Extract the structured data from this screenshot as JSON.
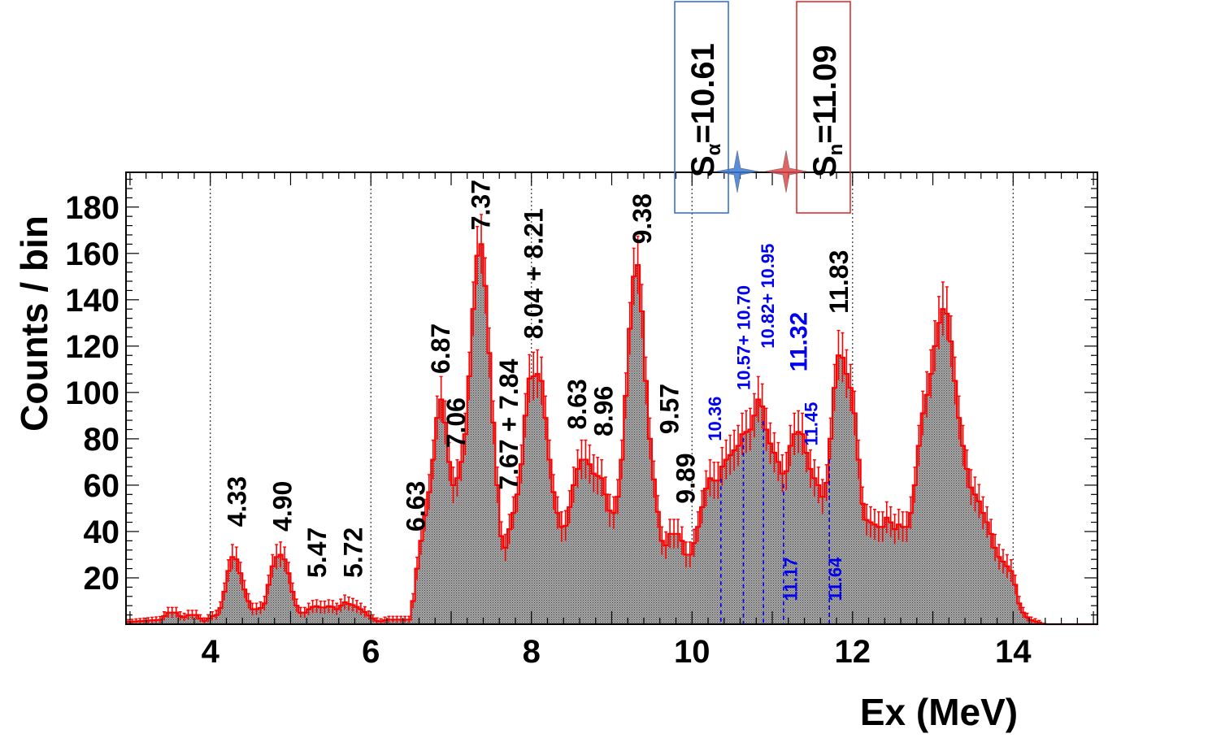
{
  "chart_data": {
    "type": "bar",
    "xlabel": "Ex (MeV)",
    "ylabel": "Counts / bin",
    "xlim": [
      2.95,
      15.05
    ],
    "ylim": [
      0,
      195
    ],
    "x_ticks": [
      4,
      6,
      8,
      10,
      12,
      14
    ],
    "y_ticks": [
      20,
      40,
      60,
      80,
      100,
      120,
      140,
      160,
      180
    ],
    "vertical_gridlines_x": [
      4,
      6,
      8,
      10,
      12,
      14
    ],
    "colors": {
      "fill": "#8a8a8a",
      "hist_line": "#ff0000",
      "blue_label": "#0000ee",
      "blue_box": "#3a6fd8",
      "red_box": "#e03030"
    },
    "histogram": {
      "bin_width_mev": 0.05,
      "points": [
        [
          3.0,
          1
        ],
        [
          3.4,
          2
        ],
        [
          3.45,
          5
        ],
        [
          3.6,
          5
        ],
        [
          3.65,
          2
        ],
        [
          3.7,
          4
        ],
        [
          3.85,
          4
        ],
        [
          3.9,
          1
        ],
        [
          4.05,
          4
        ],
        [
          4.1,
          4
        ],
        [
          4.15,
          10
        ],
        [
          4.2,
          18
        ],
        [
          4.25,
          28
        ],
        [
          4.3,
          30
        ],
        [
          4.35,
          26
        ],
        [
          4.4,
          18
        ],
        [
          4.45,
          12
        ],
        [
          4.5,
          8
        ],
        [
          4.55,
          5
        ],
        [
          4.6,
          8
        ],
        [
          4.65,
          6
        ],
        [
          4.7,
          12
        ],
        [
          4.75,
          22
        ],
        [
          4.8,
          28
        ],
        [
          4.85,
          30
        ],
        [
          4.9,
          30
        ],
        [
          4.95,
          26
        ],
        [
          5.0,
          18
        ],
        [
          5.05,
          10
        ],
        [
          5.1,
          6
        ],
        [
          5.15,
          4
        ],
        [
          5.2,
          6
        ],
        [
          5.3,
          8
        ],
        [
          5.4,
          7
        ],
        [
          5.5,
          8
        ],
        [
          5.6,
          6
        ],
        [
          5.65,
          10
        ],
        [
          5.7,
          9
        ],
        [
          5.8,
          8
        ],
        [
          5.9,
          6
        ],
        [
          6.0,
          3
        ],
        [
          6.1,
          1
        ],
        [
          6.2,
          2
        ],
        [
          6.4,
          2
        ],
        [
          6.5,
          2
        ],
        [
          6.55,
          18
        ],
        [
          6.6,
          30
        ],
        [
          6.65,
          42
        ],
        [
          6.7,
          52
        ],
        [
          6.75,
          62
        ],
        [
          6.8,
          80
        ],
        [
          6.85,
          98
        ],
        [
          6.9,
          96
        ],
        [
          6.95,
          78
        ],
        [
          7.0,
          62
        ],
        [
          7.05,
          58
        ],
        [
          7.1,
          68
        ],
        [
          7.15,
          72
        ],
        [
          7.2,
          92
        ],
        [
          7.25,
          122
        ],
        [
          7.3,
          150
        ],
        [
          7.35,
          168
        ],
        [
          7.4,
          160
        ],
        [
          7.45,
          132
        ],
        [
          7.5,
          102
        ],
        [
          7.55,
          72
        ],
        [
          7.6,
          48
        ],
        [
          7.65,
          28
        ],
        [
          7.7,
          38
        ],
        [
          7.75,
          44
        ],
        [
          7.8,
          52
        ],
        [
          7.85,
          60
        ],
        [
          7.9,
          78
        ],
        [
          7.95,
          102
        ],
        [
          8.0,
          110
        ],
        [
          8.05,
          104
        ],
        [
          8.1,
          112
        ],
        [
          8.15,
          98
        ],
        [
          8.2,
          80
        ],
        [
          8.25,
          62
        ],
        [
          8.3,
          52
        ],
        [
          8.35,
          44
        ],
        [
          8.4,
          40
        ],
        [
          8.45,
          45
        ],
        [
          8.5,
          56
        ],
        [
          8.55,
          64
        ],
        [
          8.6,
          70
        ],
        [
          8.65,
          72
        ],
        [
          8.7,
          70
        ],
        [
          8.75,
          68
        ],
        [
          8.8,
          62
        ],
        [
          8.85,
          66
        ],
        [
          8.9,
          60
        ],
        [
          8.95,
          52
        ],
        [
          9.0,
          46
        ],
        [
          9.05,
          50
        ],
        [
          9.1,
          60
        ],
        [
          9.15,
          82
        ],
        [
          9.2,
          115
        ],
        [
          9.25,
          140
        ],
        [
          9.3,
          160
        ],
        [
          9.35,
          150
        ],
        [
          9.4,
          120
        ],
        [
          9.45,
          90
        ],
        [
          9.5,
          70
        ],
        [
          9.55,
          55
        ],
        [
          9.6,
          42
        ],
        [
          9.65,
          30
        ],
        [
          9.7,
          38
        ],
        [
          9.75,
          40
        ],
        [
          9.8,
          38
        ],
        [
          9.85,
          40
        ],
        [
          9.9,
          32
        ],
        [
          9.95,
          28
        ],
        [
          10.0,
          32
        ],
        [
          10.05,
          38
        ],
        [
          10.1,
          46
        ],
        [
          10.15,
          55
        ],
        [
          10.2,
          62
        ],
        [
          10.25,
          64
        ],
        [
          10.3,
          60
        ],
        [
          10.35,
          64
        ],
        [
          10.4,
          72
        ],
        [
          10.45,
          70
        ],
        [
          10.5,
          76
        ],
        [
          10.55,
          74
        ],
        [
          10.6,
          80
        ],
        [
          10.65,
          84
        ],
        [
          10.7,
          82
        ],
        [
          10.75,
          86
        ],
        [
          10.8,
          94
        ],
        [
          10.85,
          100
        ],
        [
          10.9,
          88
        ],
        [
          10.95,
          80
        ],
        [
          11.0,
          76
        ],
        [
          11.05,
          72
        ],
        [
          11.1,
          68
        ],
        [
          11.15,
          62
        ],
        [
          11.2,
          70
        ],
        [
          11.25,
          84
        ],
        [
          11.3,
          80
        ],
        [
          11.35,
          86
        ],
        [
          11.4,
          78
        ],
        [
          11.45,
          70
        ],
        [
          11.5,
          64
        ],
        [
          11.55,
          62
        ],
        [
          11.6,
          58
        ],
        [
          11.65,
          52
        ],
        [
          11.7,
          70
        ],
        [
          11.75,
          90
        ],
        [
          11.8,
          114
        ],
        [
          11.85,
          118
        ],
        [
          11.9,
          112
        ],
        [
          11.95,
          104
        ],
        [
          12.0,
          100
        ],
        [
          12.05,
          82
        ],
        [
          12.1,
          60
        ],
        [
          12.15,
          44
        ],
        [
          12.2,
          46
        ],
        [
          12.25,
          42
        ],
        [
          12.3,
          44
        ],
        [
          12.35,
          40
        ],
        [
          12.4,
          44
        ],
        [
          12.45,
          48
        ],
        [
          12.5,
          40
        ],
        [
          12.55,
          42
        ],
        [
          12.6,
          44
        ],
        [
          12.65,
          40
        ],
        [
          12.7,
          44
        ],
        [
          12.75,
          52
        ],
        [
          12.8,
          68
        ],
        [
          12.85,
          86
        ],
        [
          12.9,
          96
        ],
        [
          12.95,
          102
        ],
        [
          13.0,
          114
        ],
        [
          13.05,
          126
        ],
        [
          13.1,
          134
        ],
        [
          13.15,
          138
        ],
        [
          13.2,
          130
        ],
        [
          13.25,
          114
        ],
        [
          13.3,
          96
        ],
        [
          13.35,
          82
        ],
        [
          13.4,
          72
        ],
        [
          13.45,
          62
        ],
        [
          13.5,
          56
        ],
        [
          13.55,
          56
        ],
        [
          13.6,
          50
        ],
        [
          13.65,
          46
        ],
        [
          13.7,
          42
        ],
        [
          13.75,
          36
        ],
        [
          13.8,
          30
        ],
        [
          13.85,
          28
        ],
        [
          13.9,
          26
        ],
        [
          13.95,
          24
        ],
        [
          14.0,
          22
        ],
        [
          14.05,
          12
        ],
        [
          14.1,
          6
        ],
        [
          14.15,
          4
        ],
        [
          14.2,
          2
        ],
        [
          14.3,
          1
        ],
        [
          14.4,
          0
        ],
        [
          15.0,
          0
        ]
      ]
    },
    "peak_labels_black": [
      {
        "text": "4.33",
        "x": 4.33,
        "y": 42
      },
      {
        "text": "4.90",
        "x": 4.9,
        "y": 40
      },
      {
        "text": "5.47",
        "x": 5.33,
        "y": 20
      },
      {
        "text": "5.72",
        "x": 5.78,
        "y": 20
      },
      {
        "text": "6.63",
        "x": 6.56,
        "y": 40
      },
      {
        "text": "6.87",
        "x": 6.87,
        "y": 108
      },
      {
        "text": "7.06",
        "x": 7.06,
        "y": 76
      },
      {
        "text": "7.37",
        "x": 7.37,
        "y": 170
      },
      {
        "text": "7.67 + 7.84",
        "x": 7.72,
        "y": 58
      },
      {
        "text": "8.04 + 8.21",
        "x": 8.03,
        "y": 123
      },
      {
        "text": "8.63",
        "x": 8.57,
        "y": 84
      },
      {
        "text": "8.96",
        "x": 8.9,
        "y": 81
      },
      {
        "text": "9.38",
        "x": 9.38,
        "y": 164
      },
      {
        "text": "9.57",
        "x": 9.72,
        "y": 82
      },
      {
        "text": "9.89",
        "x": 9.92,
        "y": 52
      },
      {
        "text": "11.83",
        "x": 11.83,
        "y": 134
      }
    ],
    "peak_labels_blue": [
      {
        "text": "10.36",
        "x": 10.28,
        "y": 79,
        "size": "small"
      },
      {
        "text": "10.57+ 10.70",
        "x": 10.64,
        "y": 101,
        "size": "small"
      },
      {
        "text": "10.82+ 10.95",
        "x": 10.94,
        "y": 119,
        "size": "small"
      },
      {
        "text": "11.32",
        "x": 11.32,
        "y": 109,
        "size": "large"
      },
      {
        "text": "11.45",
        "x": 11.48,
        "y": 77,
        "size": "small"
      },
      {
        "text": "11.17",
        "x": 11.23,
        "y": 10,
        "size": "small"
      },
      {
        "text": "11.64",
        "x": 11.78,
        "y": 10,
        "size": "small"
      }
    ],
    "blue_dashed_lines_x": [
      10.36,
      10.64,
      10.89,
      11.14,
      11.71
    ],
    "thresholds": [
      {
        "main": "S",
        "sub": "α",
        "value": "=10.61",
        "x": 10.61,
        "box": "blue"
      },
      {
        "main": "S",
        "sub": "n",
        "value": "=11.09",
        "x": 11.09,
        "box": "red"
      }
    ]
  }
}
